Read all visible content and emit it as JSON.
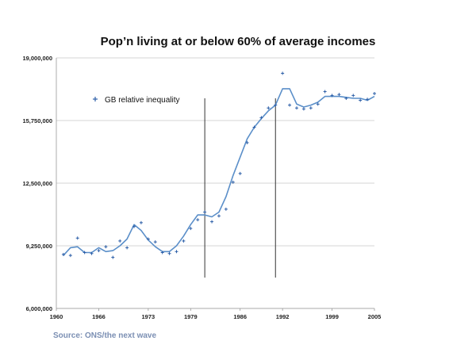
{
  "chart_data": {
    "type": "line",
    "title": "Pop’n living at or below 60% of average incomes",
    "xlabel": "",
    "ylabel": "",
    "xlim": [
      1960,
      2005
    ],
    "ylim": [
      6000000,
      19000000
    ],
    "x_ticks": [
      "1960",
      "1966",
      "1973",
      "1979",
      "1986",
      "1992",
      "1999",
      "2005"
    ],
    "y_ticks": [
      "19,000,000",
      "15,750,000",
      "12,500,000",
      "9,250,000",
      "6,000,000"
    ],
    "grid": "horizontal",
    "legend_position": "top-left",
    "vertical_markers": [
      1981,
      1991
    ],
    "series": [
      {
        "name": "GB relative inequality",
        "style": "markers",
        "color": "#2d5fa8",
        "x": [
          1961,
          1962,
          1963,
          1964,
          1965,
          1966,
          1967,
          1968,
          1969,
          1970,
          1971,
          1972,
          1973,
          1974,
          1975,
          1976,
          1977,
          1978,
          1979,
          1980,
          1981,
          1982,
          1983,
          1984,
          1985,
          1986,
          1987,
          1988,
          1989,
          1990,
          1991,
          1992,
          1993,
          1994,
          1995,
          1996,
          1997,
          1998,
          1999,
          2000,
          2001,
          2002,
          2003,
          2004,
          2005
        ],
        "y": [
          8800000,
          8750000,
          9650000,
          8900000,
          8850000,
          9000000,
          9200000,
          8650000,
          9500000,
          9150000,
          10250000,
          10450000,
          9600000,
          9450000,
          8900000,
          8850000,
          8950000,
          9500000,
          10150000,
          10600000,
          11000000,
          10500000,
          10800000,
          11150000,
          12550000,
          13000000,
          14600000,
          15400000,
          15900000,
          16400000,
          16550000,
          18200000,
          16550000,
          16400000,
          16350000,
          16400000,
          16600000,
          17250000,
          17050000,
          17100000,
          16900000,
          17050000,
          16800000,
          16850000,
          17150000
        ]
      },
      {
        "name": "",
        "style": "line",
        "color": "#5b8fc9",
        "x": [
          1961,
          1962,
          1963,
          1964,
          1965,
          1966,
          1967,
          1968,
          1969,
          1970,
          1971,
          1972,
          1973,
          1974,
          1975,
          1976,
          1977,
          1978,
          1979,
          1980,
          1981,
          1982,
          1983,
          1984,
          1985,
          1986,
          1987,
          1988,
          1989,
          1990,
          1991,
          1992,
          1993,
          1994,
          1995,
          1996,
          1997,
          1998,
          1999,
          2000,
          2001,
          2002,
          2003,
          2004,
          2005
        ],
        "y": [
          8750000,
          9150000,
          9200000,
          8900000,
          8900000,
          9150000,
          8950000,
          9000000,
          9250000,
          9600000,
          10350000,
          10050000,
          9550000,
          9200000,
          8950000,
          8950000,
          9250000,
          9750000,
          10350000,
          10850000,
          10850000,
          10750000,
          11000000,
          11800000,
          12900000,
          13850000,
          14800000,
          15400000,
          15850000,
          16250000,
          16550000,
          17400000,
          17400000,
          16600000,
          16450000,
          16550000,
          16700000,
          17000000,
          17000000,
          17000000,
          16950000,
          16900000,
          16900000,
          16800000,
          17000000
        ]
      }
    ]
  },
  "source_note": "Source: ONS/the next wave"
}
